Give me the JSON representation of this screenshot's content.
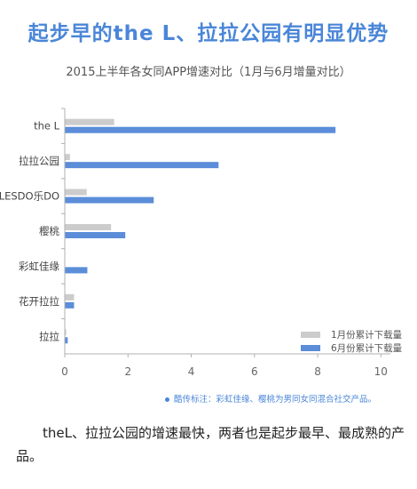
{
  "page": {
    "title": "起步早的the L、拉拉公园有明显优势",
    "subtitle": "2015上半年各女同APP增速对比（1月与6月增量对比）",
    "note": "酷传标注：彩虹佳缘、樱桃为男同女同混合社交产品。",
    "caption": "theL、拉拉公园的增速最快，两者也是起步最早、最成熟的产品。"
  },
  "chart_data": {
    "type": "bar",
    "orientation": "horizontal",
    "title": "起步早的the L、拉拉公园有明显优势",
    "subtitle": "2015上半年各女同APP增速对比（1月与6月增量对比）",
    "categories": [
      "the L",
      "拉拉公园",
      "LESDO乐DO",
      "樱桃",
      "彩虹佳缘",
      "花开拉拉",
      "拉拉"
    ],
    "series": [
      {
        "name": "1月份累计下载量",
        "color": "#cccccc",
        "values": [
          1.55,
          0.15,
          0.68,
          1.45,
          0.0,
          0.28,
          0.03
        ]
      },
      {
        "name": "6月份累计下载量",
        "color": "#5b8dd9",
        "values": [
          8.55,
          4.85,
          2.8,
          1.9,
          0.7,
          0.28,
          0.08
        ]
      }
    ],
    "xticks": [
      0,
      2,
      4,
      6,
      8,
      10
    ],
    "xlim": [
      0,
      10.3
    ],
    "grid": false,
    "legend_position": "bottom-right"
  }
}
